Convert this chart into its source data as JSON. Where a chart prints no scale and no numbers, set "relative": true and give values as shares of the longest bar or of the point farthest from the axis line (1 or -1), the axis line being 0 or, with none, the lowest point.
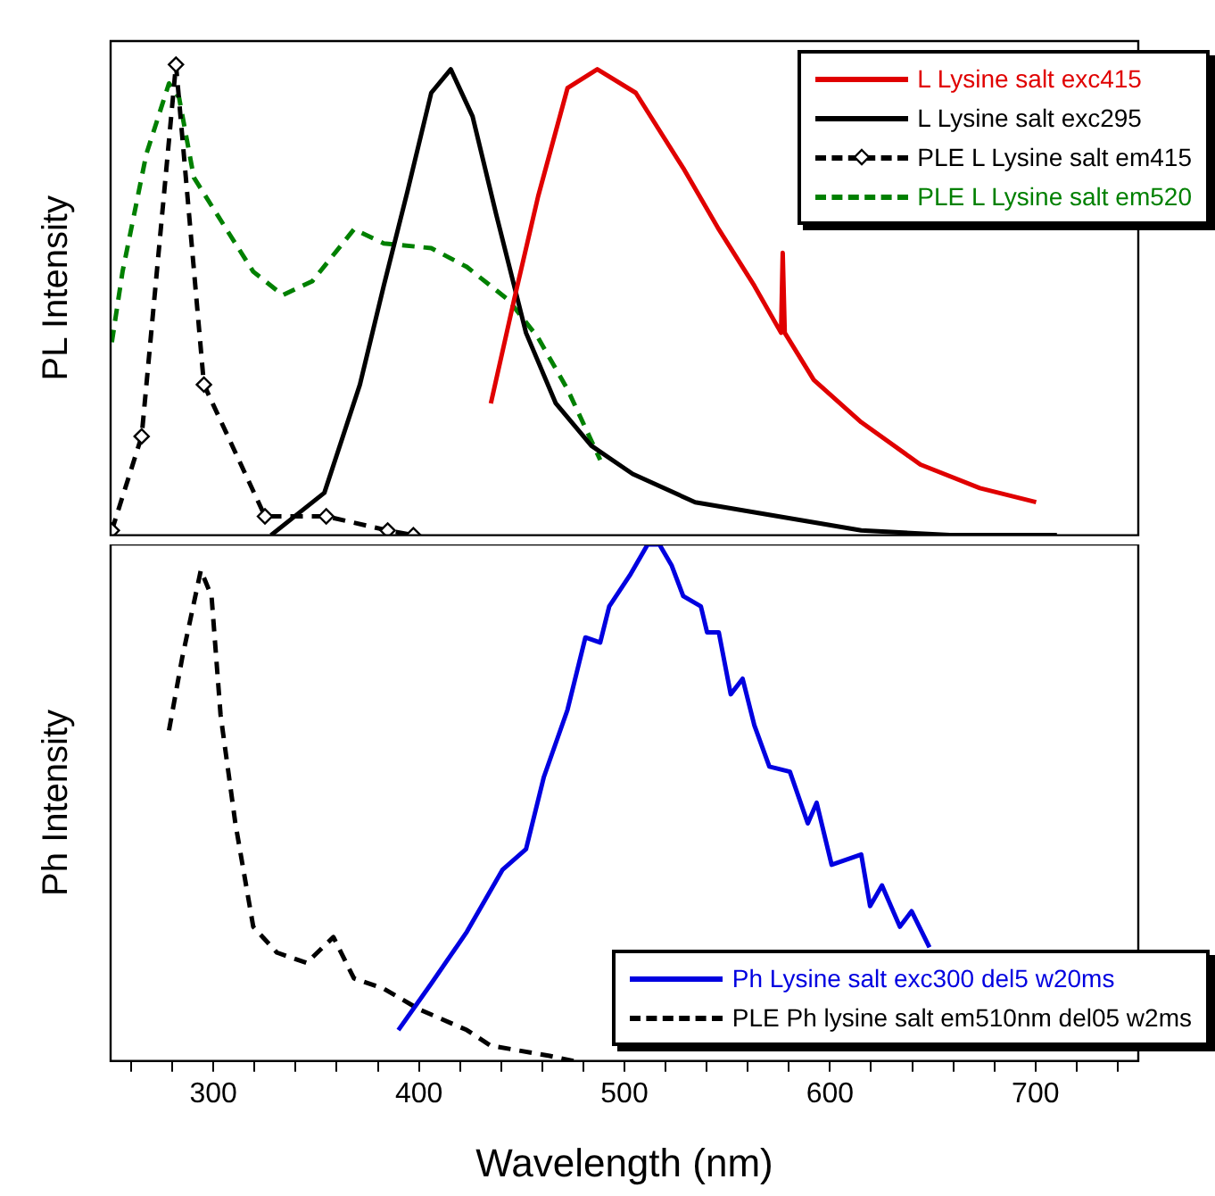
{
  "chart_data": [
    {
      "type": "line",
      "relative": true,
      "ylabel": "PL Intensity",
      "xlim": [
        250,
        750
      ],
      "tick_labels": false,
      "legend": "top right",
      "series": [
        {
          "name": "L Lysine salt exc415",
          "color": "#e00000",
          "line_style": "solid",
          "x": [
            435,
            446.3,
            458,
            472.3,
            486.8,
            505.5,
            528.6,
            545.9,
            563.2,
            576.2,
            577,
            578,
            592.1,
            615.2,
            644,
            672.9,
            700.3
          ],
          "values": [
            0.28,
            0.5,
            0.72,
            0.95,
            0.99,
            0.94,
            0.78,
            0.65,
            0.53,
            0.43,
            0.6,
            0.43,
            0.33,
            0.24,
            0.15,
            0.1,
            0.07
          ]
        },
        {
          "name": "L Lysine salt exc295",
          "color": "#000000",
          "line_style": "solid",
          "x": [
            328,
            354,
            371.3,
            382.9,
            394.4,
            406,
            415.5,
            426.1,
            437.7,
            452.1,
            466.6,
            483.9,
            504,
            534.4,
            574.8,
            615.2,
            658.4,
            710.4
          ],
          "values": [
            0,
            0.09,
            0.32,
            0.53,
            0.73,
            0.94,
            0.99,
            0.89,
            0.68,
            0.43,
            0.28,
            0.19,
            0.13,
            0.07,
            0.04,
            0.01,
            0,
            0
          ]
        },
        {
          "name": "PLE L Lysine salt em415",
          "color": "#000000",
          "line_style": "dashed",
          "marker": "diamond",
          "x": [
            250.6,
            265.1,
            281.8,
            295.4,
            325.1,
            354.9,
            384.8,
            397.3
          ],
          "values": [
            0.01,
            0.21,
            1,
            0.32,
            0.04,
            0.04,
            0.01,
            0
          ]
        },
        {
          "name": "PLE L Lysine salt em520",
          "color": "#008000",
          "line_style": "dashed",
          "x": [
            250.6,
            255.8,
            267.4,
            278.4,
            283.3,
            290.5,
            304.9,
            319.4,
            333.8,
            348.2,
            368.4,
            382.9,
            406,
            423.3,
            443.5,
            457.9,
            472.3,
            488.2
          ],
          "values": [
            0.41,
            0.56,
            0.81,
            0.96,
            0.93,
            0.76,
            0.66,
            0.56,
            0.51,
            0.54,
            0.65,
            0.62,
            0.61,
            0.57,
            0.5,
            0.42,
            0.31,
            0.16
          ]
        }
      ]
    },
    {
      "type": "line",
      "relative": true,
      "ylabel": "Ph Intensity",
      "xlabel": "Wavelength (nm)",
      "xlim": [
        250,
        750
      ],
      "tick_labels": "x",
      "legend": "bottom right",
      "xticks": [
        {
          "value": 260,
          "label": null
        },
        {
          "value": 280,
          "label": null
        },
        300,
        {
          "value": 320,
          "label": null
        },
        {
          "value": 340,
          "label": null
        },
        {
          "value": 360,
          "label": null
        },
        {
          "value": 380,
          "label": null
        },
        400,
        {
          "value": 420,
          "label": null
        },
        {
          "value": 440,
          "label": null
        },
        {
          "value": 460,
          "label": null
        },
        {
          "value": 480,
          "label": null
        },
        500,
        {
          "value": 520,
          "label": null
        },
        {
          "value": 540,
          "label": null
        },
        {
          "value": 560,
          "label": null
        },
        {
          "value": 580,
          "label": null
        },
        600,
        {
          "value": 620,
          "label": null
        },
        {
          "value": 640,
          "label": null
        },
        {
          "value": 660,
          "label": null
        },
        {
          "value": 680,
          "label": null
        },
        700,
        {
          "value": 720,
          "label": null
        },
        {
          "value": 740,
          "label": null
        }
      ],
      "series": [
        {
          "name": "Ph Lysine salt exc300 del5 w20ms",
          "color": "#0000e0",
          "line_style": "solid",
          "x": [
            390,
            406,
            423.3,
            440.6,
            452.1,
            460.8,
            472.3,
            481,
            488.2,
            492.6,
            502.6,
            511.3,
            517,
            522.9,
            528.6,
            537.2,
            540.2,
            545.9,
            551.7,
            557.5,
            563.2,
            570.5,
            580.5,
            589.2,
            593.5,
            600.8,
            615.2,
            619.5,
            625.3,
            634,
            639.7,
            648.4
          ],
          "values": [
            0.06,
            0.15,
            0.25,
            0.37,
            0.41,
            0.55,
            0.68,
            0.82,
            0.81,
            0.88,
            0.94,
            1,
            1,
            0.96,
            0.9,
            0.88,
            0.83,
            0.83,
            0.71,
            0.74,
            0.65,
            0.57,
            0.56,
            0.46,
            0.5,
            0.38,
            0.4,
            0.3,
            0.34,
            0.26,
            0.29,
            0.22
          ]
        },
        {
          "name": "PLE Ph lysine salt em510nm del05 w2ms",
          "color": "#000000",
          "line_style": "dashed",
          "x": [
            278.4,
            284.8,
            293.9,
            299.1,
            303.5,
            310.7,
            319.4,
            330.9,
            345.4,
            358.4,
            368.4,
            382.9,
            400.2,
            423.3,
            434.8,
            463.6,
            475.2
          ],
          "values": [
            0.64,
            0.78,
            0.95,
            0.9,
            0.67,
            0.46,
            0.26,
            0.21,
            0.19,
            0.24,
            0.16,
            0.14,
            0.1,
            0.06,
            0.03,
            0.01,
            0
          ]
        }
      ]
    }
  ]
}
